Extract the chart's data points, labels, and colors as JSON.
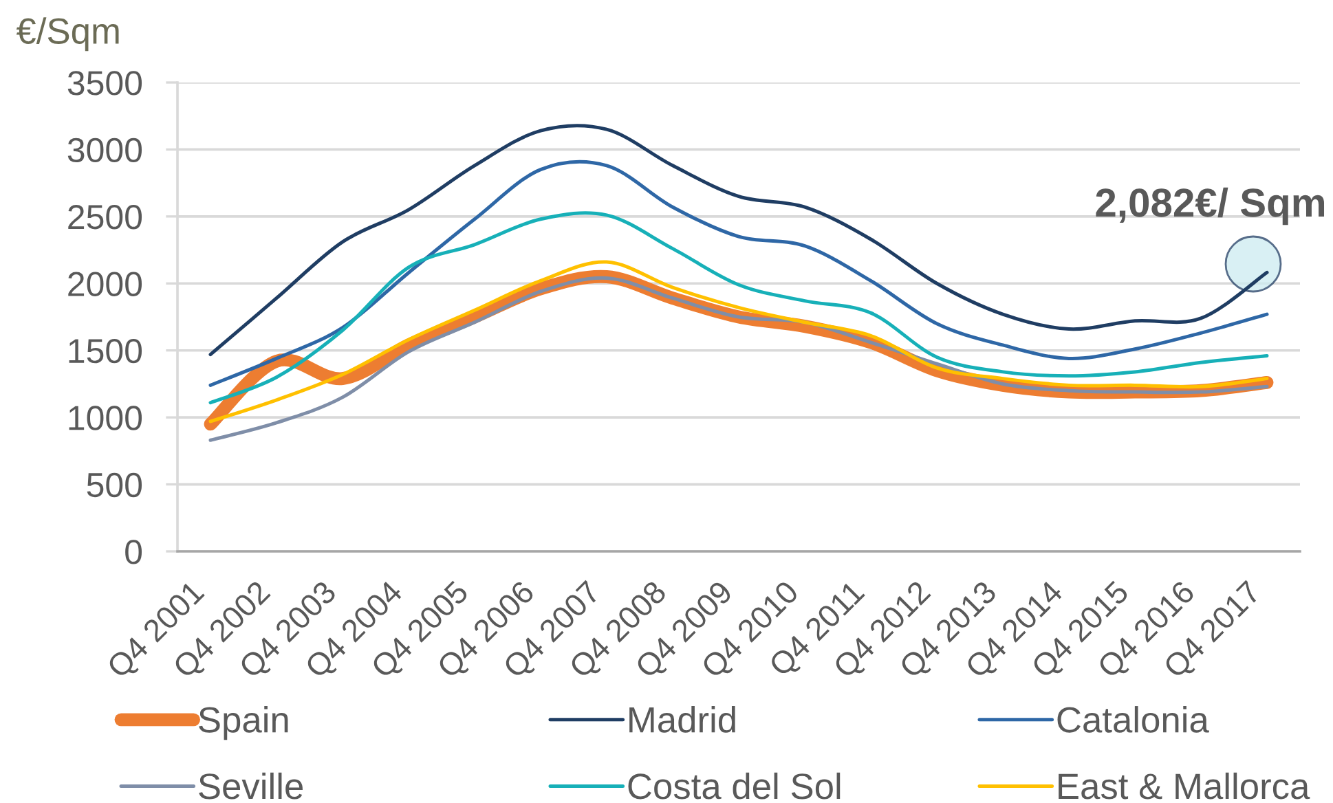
{
  "chart_data": {
    "type": "line",
    "ylabel": "€/Sqm",
    "categories": [
      "Q4 2001",
      "Q4 2002",
      "Q4 2003",
      "Q4 2004",
      "Q4 2005",
      "Q4 2006",
      "Q4 2007",
      "Q4 2008",
      "Q4 2009",
      "Q4 2010",
      "Q4 2011",
      "Q4 2012",
      "Q4 2013",
      "Q4 2014",
      "Q4 2015",
      "Q4 2016",
      "Q4 2017"
    ],
    "ylim": [
      0,
      3500
    ],
    "yticks": [
      0,
      500,
      1000,
      1500,
      2000,
      2500,
      3000,
      3500
    ],
    "grid": "y",
    "legend": "bottom",
    "series": [
      {
        "name": "Spain",
        "color": "#ed7d31",
        "values": [
          950,
          1420,
          1290,
          1540,
          1750,
          1960,
          2050,
          1890,
          1750,
          1680,
          1560,
          1350,
          1240,
          1190,
          1190,
          1200,
          1260
        ]
      },
      {
        "name": "Madrid",
        "color": "#1f3d63",
        "values": [
          1470,
          1890,
          2310,
          2550,
          2880,
          3140,
          3150,
          2880,
          2650,
          2570,
          2330,
          2000,
          1770,
          1660,
          1720,
          1740,
          2082
        ]
      },
      {
        "name": "Catalonia",
        "color": "#2e67a6",
        "values": [
          1240,
          1440,
          1670,
          2080,
          2480,
          2850,
          2880,
          2570,
          2350,
          2280,
          2020,
          1700,
          1540,
          1440,
          1510,
          1630,
          1770
        ]
      },
      {
        "name": "Seville",
        "color": "#7f8ea8",
        "values": [
          830,
          960,
          1150,
          1490,
          1710,
          1940,
          2040,
          1890,
          1750,
          1710,
          1560,
          1400,
          1250,
          1200,
          1190,
          1190,
          1230
        ]
      },
      {
        "name": "Costa del Sol",
        "color": "#17b0b8",
        "values": [
          1110,
          1300,
          1650,
          2120,
          2290,
          2480,
          2510,
          2260,
          1990,
          1870,
          1780,
          1450,
          1340,
          1310,
          1340,
          1410,
          1460
        ]
      },
      {
        "name": "East & Mallorca",
        "color": "#ffc000",
        "values": [
          970,
          1130,
          1320,
          1580,
          1800,
          2020,
          2160,
          1970,
          1820,
          1710,
          1610,
          1370,
          1290,
          1240,
          1240,
          1230,
          1290
        ]
      }
    ],
    "annotations": [
      "2,082€/ Sqm"
    ]
  }
}
